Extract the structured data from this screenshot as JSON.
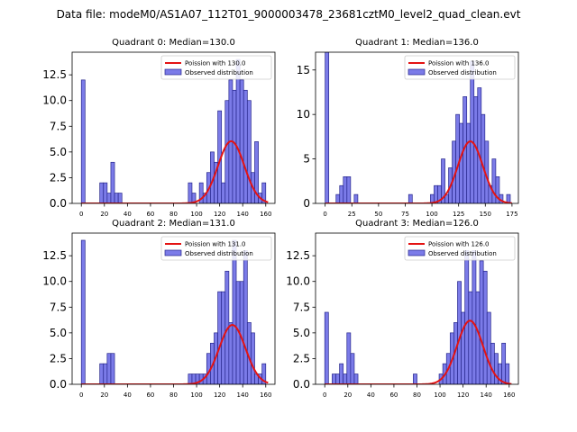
{
  "figure": {
    "suptitle": "Data file: modeM0/AS1A07_112T01_9000003478_23681cztM0_level2_quad_clean.evt",
    "colors": {
      "bar_fill": "#7b7be8",
      "bar_edge": "#26268c",
      "curve": "#e41313",
      "axes": "#000000",
      "background": "#ffffff"
    }
  },
  "chart_data": [
    {
      "type": "bar",
      "title": "Quadrant 0: Median=130.0",
      "bin_width": 3.2,
      "xlim": [
        -8,
        168
      ],
      "ylim": [
        0,
        14.7
      ],
      "xticks": [
        0,
        20,
        40,
        60,
        80,
        100,
        120,
        140,
        160
      ],
      "yticks": [
        0.0,
        2.5,
        5.0,
        7.5,
        10.0,
        12.5
      ],
      "ytick_labels": [
        "0.0",
        "2.5",
        "5.0",
        "7.5",
        "10.0",
        "12.5"
      ],
      "legend": [
        "Poission with 130.0",
        "Observed distribution"
      ],
      "legend_position": "top-right",
      "poisson_mean": 130,
      "curve_scale": 1.2,
      "bins": [
        [
          0,
          12
        ],
        [
          16,
          2
        ],
        [
          19.2,
          2
        ],
        [
          22.4,
          1
        ],
        [
          25.6,
          4
        ],
        [
          28.8,
          1
        ],
        [
          32,
          1
        ],
        [
          92.8,
          2
        ],
        [
          96,
          1
        ],
        [
          102.4,
          2
        ],
        [
          105.6,
          1
        ],
        [
          108.8,
          3
        ],
        [
          112,
          5
        ],
        [
          115.2,
          4
        ],
        [
          118.4,
          9
        ],
        [
          121.6,
          2
        ],
        [
          124.8,
          10
        ],
        [
          128,
          12
        ],
        [
          131.2,
          11
        ],
        [
          134.4,
          14
        ],
        [
          137.6,
          12
        ],
        [
          140.8,
          11
        ],
        [
          144,
          10
        ],
        [
          147.2,
          3
        ],
        [
          150.4,
          6
        ],
        [
          153.6,
          1
        ],
        [
          156.8,
          2
        ]
      ]
    },
    {
      "type": "bar",
      "title": "Quadrant 1: Median=136.0",
      "bin_width": 3.4,
      "xlim": [
        -9,
        181
      ],
      "ylim": [
        0,
        17
      ],
      "xticks": [
        0,
        25,
        50,
        75,
        100,
        125,
        150,
        175
      ],
      "yticks": [
        0,
        5,
        10,
        15
      ],
      "ytick_labels": [
        "0",
        "5",
        "10",
        "15"
      ],
      "legend": [
        "Poission with 136.0",
        "Observed distribution"
      ],
      "legend_position": "top-right",
      "poisson_mean": 136,
      "curve_scale": 1.2,
      "bins": [
        [
          0,
          17
        ],
        [
          10.2,
          1
        ],
        [
          13.6,
          2
        ],
        [
          17,
          3
        ],
        [
          20.4,
          3
        ],
        [
          27.2,
          1
        ],
        [
          78.2,
          1
        ],
        [
          98.6,
          1
        ],
        [
          102,
          2
        ],
        [
          105.4,
          2
        ],
        [
          108.8,
          5
        ],
        [
          112.2,
          1
        ],
        [
          115.6,
          4
        ],
        [
          119,
          7
        ],
        [
          122.4,
          10
        ],
        [
          125.8,
          9
        ],
        [
          129.2,
          12
        ],
        [
          132.6,
          9
        ],
        [
          136,
          16
        ],
        [
          139.4,
          12
        ],
        [
          142.8,
          13
        ],
        [
          146.2,
          10
        ],
        [
          149.6,
          7
        ],
        [
          153,
          2
        ],
        [
          156.4,
          5
        ],
        [
          159.8,
          3
        ],
        [
          163.2,
          1
        ],
        [
          170,
          1
        ]
      ]
    },
    {
      "type": "bar",
      "title": "Quadrant 2: Median=131.0",
      "bin_width": 3.2,
      "xlim": [
        -8,
        168
      ],
      "ylim": [
        0,
        14.7
      ],
      "xticks": [
        0,
        20,
        40,
        60,
        80,
        100,
        120,
        140,
        160
      ],
      "yticks": [
        0.0,
        2.5,
        5.0,
        7.5,
        10.0,
        12.5
      ],
      "ytick_labels": [
        "0.0",
        "2.5",
        "5.0",
        "7.5",
        "10.0",
        "12.5"
      ],
      "legend": [
        "Poission with 131.0",
        "Observed distribution"
      ],
      "legend_position": "top-right",
      "poisson_mean": 131,
      "curve_scale": 1.2,
      "bins": [
        [
          0,
          14
        ],
        [
          16,
          2
        ],
        [
          19.2,
          2
        ],
        [
          22.4,
          3
        ],
        [
          25.6,
          3
        ],
        [
          92.8,
          1
        ],
        [
          96,
          1
        ],
        [
          99.2,
          1
        ],
        [
          102.4,
          1
        ],
        [
          105.6,
          1
        ],
        [
          108.8,
          3
        ],
        [
          112,
          4
        ],
        [
          115.2,
          5
        ],
        [
          118.4,
          9
        ],
        [
          121.6,
          9
        ],
        [
          124.8,
          11
        ],
        [
          128,
          6
        ],
        [
          131.2,
          14
        ],
        [
          134.4,
          10
        ],
        [
          137.6,
          10
        ],
        [
          140.8,
          13
        ],
        [
          144,
          6
        ],
        [
          147.2,
          5
        ],
        [
          150.4,
          1
        ],
        [
          153.6,
          1
        ],
        [
          156.8,
          2
        ]
      ]
    },
    {
      "type": "bar",
      "title": "Quadrant 3: Median=126.0",
      "bin_width": 3.2,
      "xlim": [
        -8,
        168
      ],
      "ylim": [
        0,
        14.7
      ],
      "xticks": [
        0,
        20,
        40,
        60,
        80,
        100,
        120,
        140,
        160
      ],
      "yticks": [
        0.0,
        2.5,
        5.0,
        7.5,
        10.0,
        12.5
      ],
      "ytick_labels": [
        "0.0",
        "2.5",
        "5.0",
        "7.5",
        "10.0",
        "12.5"
      ],
      "legend": [
        "Poission with 126.0",
        "Observed distribution"
      ],
      "legend_position": "top-right",
      "poisson_mean": 126,
      "curve_scale": 1.2,
      "bins": [
        [
          0,
          7
        ],
        [
          6.4,
          1
        ],
        [
          9.6,
          1
        ],
        [
          12.8,
          2
        ],
        [
          16,
          1
        ],
        [
          19.2,
          5
        ],
        [
          22.4,
          3
        ],
        [
          25.6,
          1
        ],
        [
          76.8,
          1
        ],
        [
          99.2,
          1
        ],
        [
          102.4,
          2
        ],
        [
          105.6,
          3
        ],
        [
          108.8,
          5
        ],
        [
          112,
          6
        ],
        [
          115.2,
          10
        ],
        [
          118.4,
          7
        ],
        [
          121.6,
          13
        ],
        [
          124.8,
          9
        ],
        [
          128,
          13
        ],
        [
          131.2,
          9
        ],
        [
          134.4,
          12
        ],
        [
          137.6,
          11
        ],
        [
          140.8,
          7
        ],
        [
          144,
          4
        ],
        [
          147.2,
          3
        ],
        [
          150.4,
          2
        ],
        [
          153.6,
          4
        ],
        [
          156.8,
          2
        ]
      ]
    }
  ]
}
